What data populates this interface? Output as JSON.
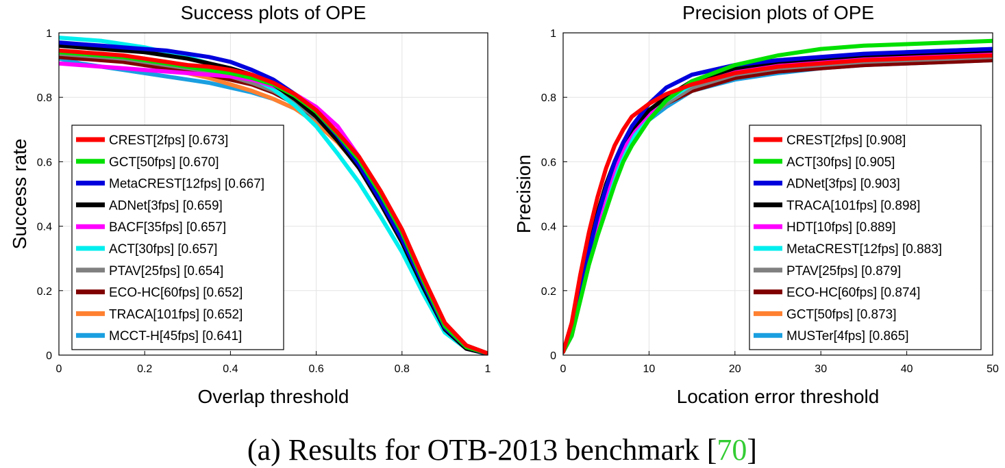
{
  "caption": {
    "prefix": "(a)  Results for OTB-2013 benchmark [",
    "ref": "70",
    "suffix": "]",
    "ref_color": "#33cc33"
  },
  "chart_data": [
    {
      "type": "line",
      "title": "Success plots of OPE",
      "xlabel": "Overlap threshold",
      "ylabel": "Success rate",
      "xlim": [
        0,
        1
      ],
      "ylim": [
        0,
        1
      ],
      "xticks": [
        "0",
        "0.2",
        "0.4",
        "0.6",
        "0.8",
        "1"
      ],
      "yticks": [
        "0",
        "0.2",
        "0.4",
        "0.6",
        "0.8",
        "1"
      ],
      "grid": true,
      "legend_position": "bottom-left",
      "x": [
        0,
        0.05,
        0.1,
        0.15,
        0.2,
        0.25,
        0.3,
        0.35,
        0.4,
        0.45,
        0.5,
        0.55,
        0.6,
        0.65,
        0.7,
        0.75,
        0.8,
        0.85,
        0.9,
        0.95,
        1.0
      ],
      "series": [
        {
          "name": "CREST[2fps] [0.673]",
          "color": "#ff0000",
          "values": [
            0.945,
            0.94,
            0.935,
            0.93,
            0.92,
            0.91,
            0.9,
            0.895,
            0.885,
            0.87,
            0.845,
            0.81,
            0.76,
            0.69,
            0.615,
            0.51,
            0.39,
            0.24,
            0.1,
            0.03,
            0.005
          ]
        },
        {
          "name": "GCT[50fps] [0.670]",
          "color": "#00e000",
          "values": [
            0.94,
            0.935,
            0.93,
            0.925,
            0.915,
            0.905,
            0.895,
            0.885,
            0.875,
            0.86,
            0.84,
            0.805,
            0.755,
            0.685,
            0.605,
            0.5,
            0.38,
            0.23,
            0.09,
            0.025,
            0.005
          ]
        },
        {
          "name": "MetaCREST[12fps] [0.667]",
          "color": "#0000dd",
          "values": [
            0.97,
            0.965,
            0.96,
            0.955,
            0.95,
            0.945,
            0.935,
            0.925,
            0.91,
            0.885,
            0.855,
            0.81,
            0.755,
            0.68,
            0.59,
            0.48,
            0.36,
            0.22,
            0.085,
            0.025,
            0.004
          ]
        },
        {
          "name": "ADNet[3fps] [0.659]",
          "color": "#000000",
          "values": [
            0.96,
            0.955,
            0.95,
            0.945,
            0.94,
            0.93,
            0.92,
            0.905,
            0.89,
            0.87,
            0.84,
            0.795,
            0.74,
            0.665,
            0.58,
            0.47,
            0.35,
            0.21,
            0.08,
            0.02,
            0.004
          ]
        },
        {
          "name": "BACF[35fps] [0.657]",
          "color": "#ff00ff",
          "values": [
            0.905,
            0.9,
            0.895,
            0.89,
            0.885,
            0.88,
            0.875,
            0.87,
            0.865,
            0.855,
            0.835,
            0.81,
            0.77,
            0.71,
            0.615,
            0.495,
            0.37,
            0.22,
            0.08,
            0.02,
            0.004
          ]
        },
        {
          "name": "ACT[30fps] [0.657]",
          "color": "#00eeee",
          "values": [
            0.985,
            0.98,
            0.975,
            0.965,
            0.955,
            0.94,
            0.925,
            0.905,
            0.885,
            0.86,
            0.825,
            0.775,
            0.71,
            0.625,
            0.535,
            0.43,
            0.32,
            0.19,
            0.07,
            0.02,
            0.004
          ]
        },
        {
          "name": "PTAV[25fps] [0.654]",
          "color": "#808080",
          "values": [
            0.935,
            0.93,
            0.925,
            0.92,
            0.91,
            0.9,
            0.89,
            0.88,
            0.865,
            0.845,
            0.82,
            0.785,
            0.735,
            0.67,
            0.59,
            0.485,
            0.365,
            0.22,
            0.085,
            0.025,
            0.004
          ]
        },
        {
          "name": "ECO-HC[60fps] [0.652]",
          "color": "#800000",
          "values": [
            0.925,
            0.92,
            0.915,
            0.91,
            0.9,
            0.89,
            0.88,
            0.87,
            0.855,
            0.84,
            0.815,
            0.78,
            0.735,
            0.67,
            0.59,
            0.485,
            0.37,
            0.23,
            0.095,
            0.03,
            0.005
          ]
        },
        {
          "name": "TRACA[101fps] [0.652]",
          "color": "#ff8030",
          "values": [
            0.94,
            0.935,
            0.925,
            0.915,
            0.905,
            0.89,
            0.875,
            0.86,
            0.84,
            0.82,
            0.795,
            0.765,
            0.72,
            0.66,
            0.585,
            0.485,
            0.37,
            0.23,
            0.09,
            0.025,
            0.004
          ]
        },
        {
          "name": "MCCT-H[45fps] [0.641]",
          "color": "#1a9fe0",
          "values": [
            0.92,
            0.905,
            0.895,
            0.885,
            0.875,
            0.865,
            0.855,
            0.845,
            0.83,
            0.815,
            0.795,
            0.765,
            0.725,
            0.665,
            0.585,
            0.48,
            0.36,
            0.215,
            0.075,
            0.02,
            0.003
          ]
        }
      ]
    },
    {
      "type": "line",
      "title": "Precision plots of OPE",
      "xlabel": "Location error threshold",
      "ylabel": "Precision",
      "xlim": [
        0,
        50
      ],
      "ylim": [
        0,
        1
      ],
      "xticks": [
        "0",
        "10",
        "20",
        "30",
        "40",
        "50"
      ],
      "yticks": [
        "0",
        "0.2",
        "0.4",
        "0.6",
        "0.8",
        "1"
      ],
      "grid": true,
      "legend_position": "bottom-right",
      "x": [
        0,
        1,
        2,
        3,
        4,
        5,
        6,
        7,
        8,
        10,
        12,
        15,
        20,
        25,
        30,
        35,
        40,
        45,
        50
      ],
      "series": [
        {
          "name": "CREST[2fps] [0.908]",
          "color": "#ff0000",
          "values": [
            0.01,
            0.1,
            0.25,
            0.38,
            0.49,
            0.58,
            0.65,
            0.7,
            0.74,
            0.78,
            0.81,
            0.84,
            0.875,
            0.895,
            0.905,
            0.915,
            0.92,
            0.925,
            0.93
          ]
        },
        {
          "name": "ACT[30fps] [0.905]",
          "color": "#00e000",
          "values": [
            0.01,
            0.06,
            0.17,
            0.28,
            0.37,
            0.45,
            0.53,
            0.6,
            0.65,
            0.73,
            0.79,
            0.85,
            0.9,
            0.93,
            0.95,
            0.96,
            0.965,
            0.97,
            0.975
          ]
        },
        {
          "name": "ADNet[3fps] [0.903]",
          "color": "#0000dd",
          "values": [
            0.01,
            0.07,
            0.2,
            0.32,
            0.43,
            0.52,
            0.6,
            0.66,
            0.71,
            0.78,
            0.83,
            0.87,
            0.9,
            0.915,
            0.925,
            0.935,
            0.94,
            0.945,
            0.95
          ]
        },
        {
          "name": "TRACA[101fps] [0.898]",
          "color": "#000000",
          "values": [
            0.01,
            0.08,
            0.21,
            0.33,
            0.44,
            0.53,
            0.6,
            0.66,
            0.7,
            0.76,
            0.8,
            0.85,
            0.89,
            0.91,
            0.92,
            0.93,
            0.935,
            0.94,
            0.945
          ]
        },
        {
          "name": "HDT[10fps] [0.889]",
          "color": "#ff00ff",
          "values": [
            0.01,
            0.06,
            0.18,
            0.3,
            0.41,
            0.5,
            0.58,
            0.64,
            0.69,
            0.75,
            0.8,
            0.845,
            0.88,
            0.9,
            0.915,
            0.925,
            0.93,
            0.935,
            0.94
          ]
        },
        {
          "name": "MetaCREST[12fps] [0.883]",
          "color": "#00eeee",
          "values": [
            0.01,
            0.06,
            0.18,
            0.29,
            0.39,
            0.48,
            0.56,
            0.62,
            0.67,
            0.74,
            0.79,
            0.84,
            0.88,
            0.905,
            0.92,
            0.93,
            0.94,
            0.945,
            0.95
          ]
        },
        {
          "name": "PTAV[25fps] [0.879]",
          "color": "#808080",
          "values": [
            0.01,
            0.07,
            0.19,
            0.31,
            0.42,
            0.51,
            0.58,
            0.64,
            0.68,
            0.74,
            0.78,
            0.83,
            0.87,
            0.89,
            0.9,
            0.91,
            0.915,
            0.92,
            0.925
          ]
        },
        {
          "name": "ECO-HC[60fps] [0.874]",
          "color": "#800000",
          "values": [
            0.01,
            0.08,
            0.21,
            0.33,
            0.43,
            0.52,
            0.59,
            0.64,
            0.68,
            0.74,
            0.78,
            0.82,
            0.86,
            0.88,
            0.89,
            0.9,
            0.905,
            0.91,
            0.915
          ]
        },
        {
          "name": "GCT[50fps] [0.873]",
          "color": "#ff8030",
          "values": [
            0.01,
            0.08,
            0.21,
            0.33,
            0.43,
            0.52,
            0.59,
            0.64,
            0.68,
            0.74,
            0.78,
            0.82,
            0.86,
            0.88,
            0.895,
            0.905,
            0.91,
            0.915,
            0.92
          ]
        },
        {
          "name": "MUSTer[4fps] [0.865]",
          "color": "#1a9fe0",
          "values": [
            0.01,
            0.07,
            0.19,
            0.31,
            0.41,
            0.5,
            0.57,
            0.63,
            0.67,
            0.73,
            0.77,
            0.82,
            0.855,
            0.875,
            0.89,
            0.9,
            0.905,
            0.91,
            0.915
          ]
        }
      ]
    }
  ]
}
